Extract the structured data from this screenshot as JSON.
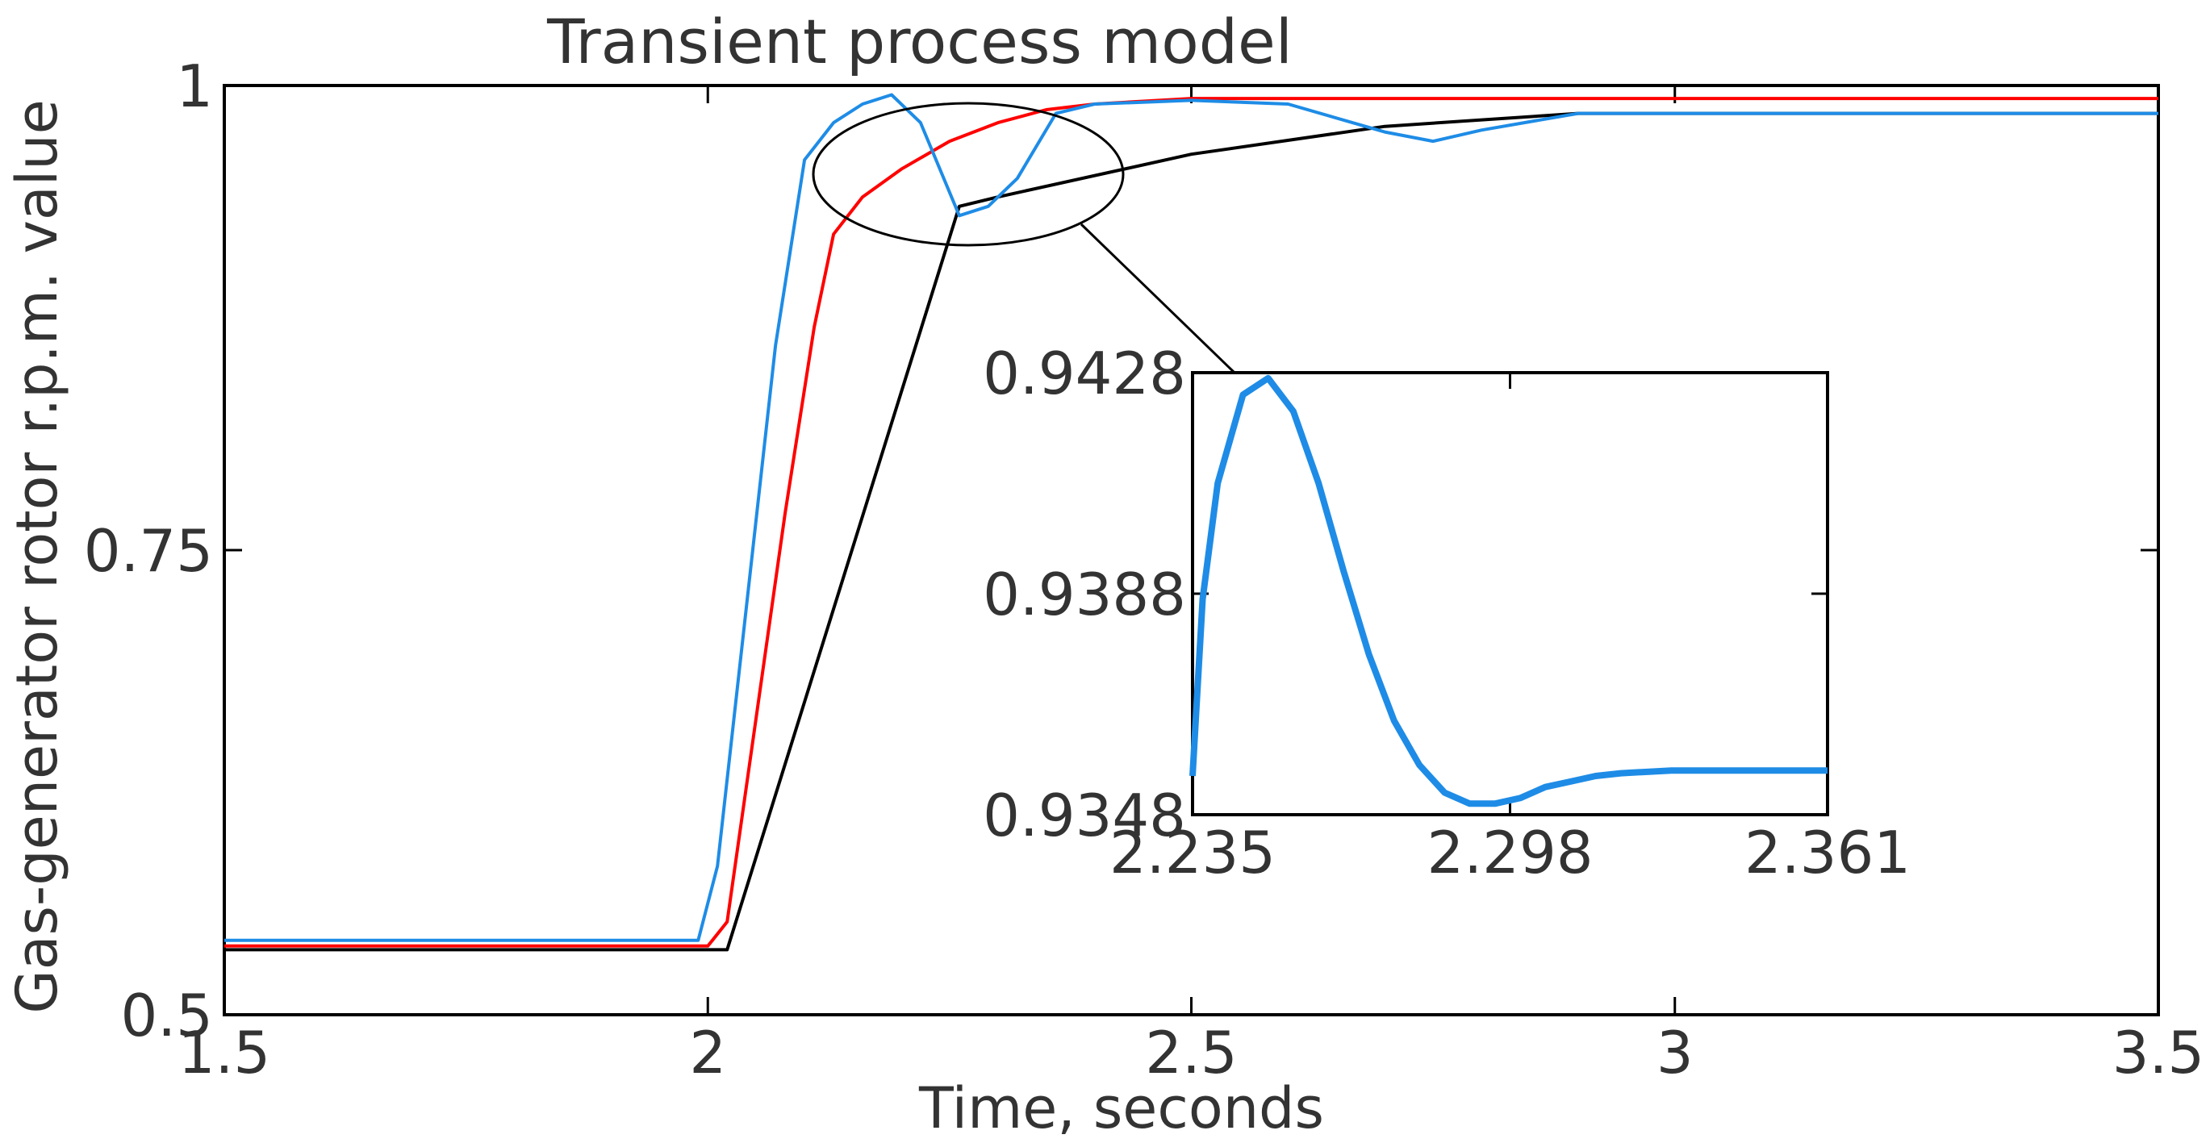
{
  "chart_data": [
    {
      "type": "line",
      "title": "Transient process model",
      "xlabel": "Time, seconds",
      "ylabel": "Gas-generator rotor r.p.m. value",
      "xlim": [
        1.5,
        3.5
      ],
      "ylim": [
        0.5,
        1.0
      ],
      "xticks": [
        1.5,
        2,
        2.5,
        3,
        3.5
      ],
      "xtick_labels": [
        "1.5",
        "2",
        "2.5",
        "3",
        "3.5"
      ],
      "yticks": [
        0.5,
        0.75,
        1.0
      ],
      "ytick_labels": [
        "0.5",
        "0.75",
        "1"
      ],
      "grid": false,
      "legend": "none",
      "series": [
        {
          "color": "#000000",
          "x": [
            1.5,
            2.0,
            2.02,
            2.26,
            2.3,
            2.5,
            2.7,
            2.9,
            3.5
          ],
          "y": [
            0.535,
            0.535,
            0.535,
            0.935,
            0.94,
            0.963,
            0.978,
            0.985,
            0.985
          ]
        },
        {
          "color": "#ff0000",
          "x": [
            1.5,
            2.0,
            2.02,
            2.05,
            2.08,
            2.11,
            2.13,
            2.16,
            2.2,
            2.25,
            2.3,
            2.35,
            2.4,
            2.5,
            3.0,
            3.5
          ],
          "y": [
            0.537,
            0.537,
            0.55,
            0.66,
            0.77,
            0.87,
            0.92,
            0.94,
            0.955,
            0.97,
            0.98,
            0.987,
            0.99,
            0.993,
            0.993,
            0.993
          ]
        },
        {
          "color": "#1e8ce6",
          "x": [
            1.5,
            1.99,
            2.01,
            2.04,
            2.07,
            2.1,
            2.13,
            2.16,
            2.19,
            2.22,
            2.26,
            2.29,
            2.32,
            2.36,
            2.4,
            2.5,
            2.6,
            2.7,
            2.75,
            2.8,
            2.9,
            3.0,
            3.5
          ],
          "y": [
            0.54,
            0.54,
            0.58,
            0.72,
            0.86,
            0.96,
            0.98,
            0.99,
            0.995,
            0.98,
            0.93,
            0.935,
            0.95,
            0.985,
            0.99,
            0.992,
            0.99,
            0.975,
            0.97,
            0.976,
            0.985,
            0.985,
            0.985
          ]
        }
      ]
    },
    {
      "type": "line",
      "title": "",
      "xlabel": "",
      "ylabel": "",
      "xlim": [
        2.235,
        2.361
      ],
      "ylim": [
        0.9348,
        0.9428
      ],
      "xticks": [
        2.235,
        2.298,
        2.361
      ],
      "xtick_labels": [
        "2.235",
        "2.298",
        "2.361"
      ],
      "yticks": [
        0.9348,
        0.9388,
        0.9428
      ],
      "ytick_labels": [
        "0.9348",
        "0.9388",
        "0.9428"
      ],
      "grid": false,
      "legend": "none",
      "series": [
        {
          "color": "#1e8ce6",
          "x": [
            2.235,
            2.237,
            2.24,
            2.245,
            2.25,
            2.255,
            2.26,
            2.265,
            2.27,
            2.275,
            2.28,
            2.285,
            2.29,
            2.295,
            2.3,
            2.305,
            2.31,
            2.315,
            2.32,
            2.33,
            2.34,
            2.35,
            2.361
          ],
          "y": [
            0.9355,
            0.9387,
            0.9408,
            0.9424,
            0.9427,
            0.9421,
            0.9408,
            0.9392,
            0.9377,
            0.9365,
            0.9357,
            0.9352,
            0.935,
            0.935,
            0.9351,
            0.9353,
            0.9354,
            0.9355,
            0.93555,
            0.9356,
            0.9356,
            0.9356,
            0.9356
          ]
        }
      ]
    }
  ]
}
